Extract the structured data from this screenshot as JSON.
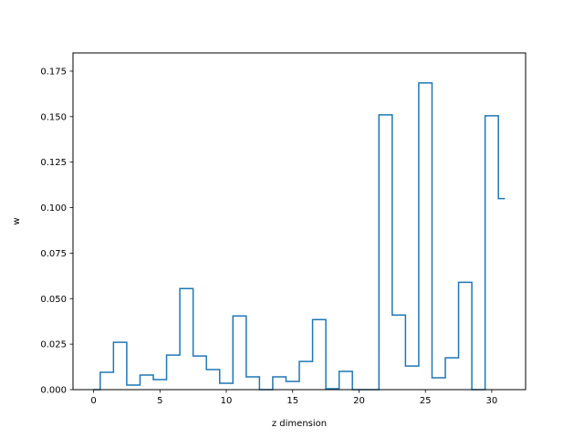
{
  "chart_data": {
    "type": "line",
    "drawstyle": "steps-mid",
    "xlabel": "z dimension",
    "ylabel": "w",
    "xlim": [
      -1.55,
      32.55
    ],
    "ylim": [
      0,
      0.185
    ],
    "xticks": [
      0,
      5,
      10,
      15,
      20,
      25,
      30
    ],
    "yticks": [
      "0.000",
      "0.025",
      "0.050",
      "0.075",
      "0.100",
      "0.125",
      "0.150",
      "0.175"
    ],
    "grid": false,
    "line_color": "#1f77b4",
    "x": [
      0,
      1,
      2,
      3,
      4,
      5,
      6,
      7,
      8,
      9,
      10,
      11,
      12,
      13,
      14,
      15,
      16,
      17,
      18,
      19,
      20,
      21,
      22,
      23,
      24,
      25,
      26,
      27,
      28,
      29,
      30,
      31
    ],
    "values": [
      0.0,
      0.0095,
      0.026,
      0.0025,
      0.008,
      0.0055,
      0.019,
      0.0555,
      0.0185,
      0.011,
      0.0035,
      0.0405,
      0.007,
      0.0,
      0.007,
      0.0045,
      0.0155,
      0.0385,
      0.0005,
      0.01,
      0.0,
      0.0,
      0.151,
      0.041,
      0.013,
      0.1685,
      0.0065,
      0.0175,
      0.059,
      0.0,
      0.1505,
      0.105
    ]
  }
}
